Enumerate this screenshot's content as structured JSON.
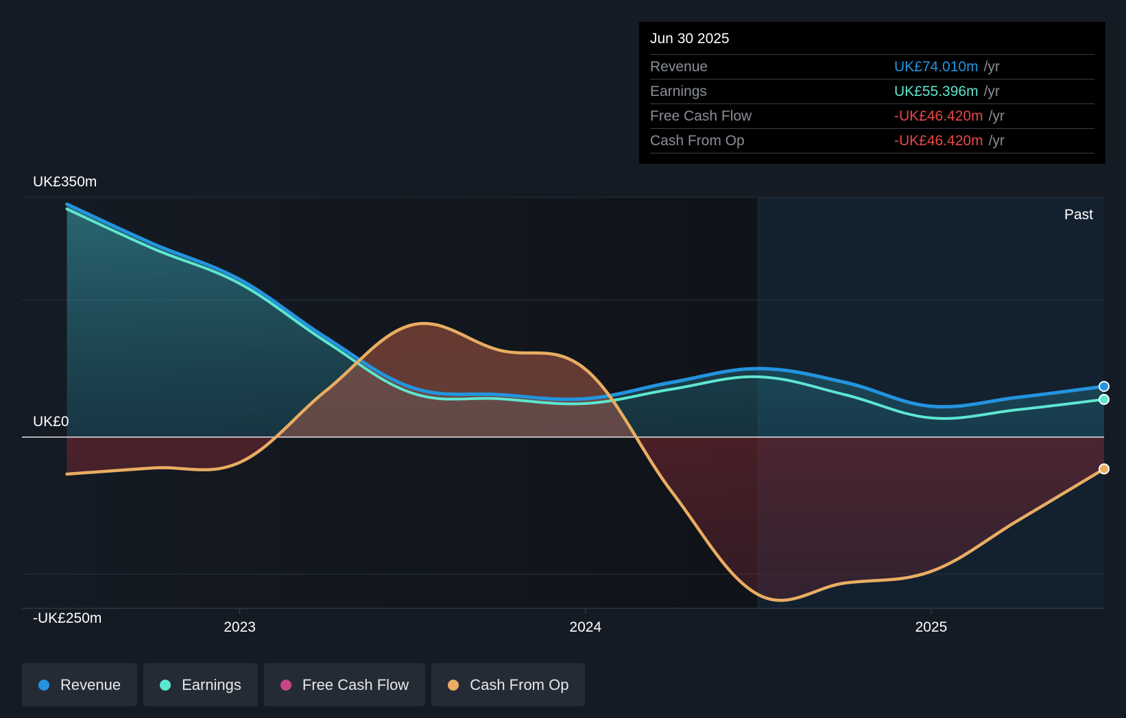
{
  "tooltip": {
    "date": "Jun 30 2025",
    "rows": [
      {
        "label": "Revenue",
        "value": "UK£74.010m",
        "unit": "/yr",
        "color": "#2394df"
      },
      {
        "label": "Earnings",
        "value": "UK£55.396m",
        "unit": "/yr",
        "color": "#5ee6d0"
      },
      {
        "label": "Free Cash Flow",
        "value": "-UK£46.420m",
        "unit": "/yr",
        "color": "#e64848"
      },
      {
        "label": "Cash From Op",
        "value": "-UK£46.420m",
        "unit": "/yr",
        "color": "#e64848"
      }
    ]
  },
  "legend": [
    {
      "label": "Revenue",
      "color": "#2394df"
    },
    {
      "label": "Earnings",
      "color": "#5ee6d0"
    },
    {
      "label": "Free Cash Flow",
      "color": "#c94586"
    },
    {
      "label": "Cash From Op",
      "color": "#e9ad62"
    }
  ],
  "chart_data": {
    "type": "area",
    "title": "",
    "x_ticks": [
      {
        "label": "2023",
        "x": 2023.0
      },
      {
        "label": "2024",
        "x": 2024.0
      },
      {
        "label": "2025",
        "x": 2025.0
      }
    ],
    "y_axis_labels": [
      {
        "label": "UK£350m",
        "value": 350
      },
      {
        "label": "UK£0",
        "value": 0
      },
      {
        "label": "-UK£250m",
        "value": -250
      }
    ],
    "ylim": [
      -250,
      350
    ],
    "xlim": [
      2022.37,
      2025.5
    ],
    "past_label": "Past",
    "past_start": 2024.5,
    "series": [
      {
        "name": "Revenue",
        "color": "#2394df",
        "x": [
          2022.5,
          2022.75,
          2023.0,
          2023.25,
          2023.5,
          2023.75,
          2024.0,
          2024.25,
          2024.5,
          2024.75,
          2025.0,
          2025.25,
          2025.5
        ],
        "values": [
          340,
          282,
          230,
          145,
          72,
          62,
          56,
          80,
          100,
          80,
          45,
          58,
          74
        ]
      },
      {
        "name": "Earnings",
        "color": "#5ee6d0",
        "x": [
          2022.5,
          2022.75,
          2023.0,
          2023.25,
          2023.5,
          2023.75,
          2024.0,
          2024.25,
          2024.5,
          2024.75,
          2025.0,
          2025.25,
          2025.5
        ],
        "values": [
          333,
          275,
          224,
          139,
          64,
          56,
          49,
          70,
          88,
          62,
          28,
          40,
          55
        ]
      },
      {
        "name": "Free Cash Flow",
        "color": "#c94586",
        "x": [
          2022.5,
          2022.75,
          2023.0,
          2023.25,
          2023.5,
          2023.75,
          2024.0,
          2024.25,
          2024.5,
          2024.75,
          2025.0,
          2025.25,
          2025.5
        ],
        "values": [
          -54,
          -45,
          -37,
          68,
          164,
          127,
          99,
          -80,
          -230,
          -213,
          -196,
          -122,
          -46.42
        ]
      },
      {
        "name": "Cash From Op",
        "color": "#e9ad62",
        "x": [
          2022.5,
          2022.75,
          2023.0,
          2023.25,
          2023.5,
          2023.75,
          2024.0,
          2024.25,
          2024.5,
          2024.75,
          2025.0,
          2025.25,
          2025.5
        ],
        "values": [
          -54,
          -45,
          -37,
          68,
          164,
          127,
          99,
          -80,
          -230,
          -213,
          -196,
          -122,
          -46.42
        ]
      }
    ]
  }
}
